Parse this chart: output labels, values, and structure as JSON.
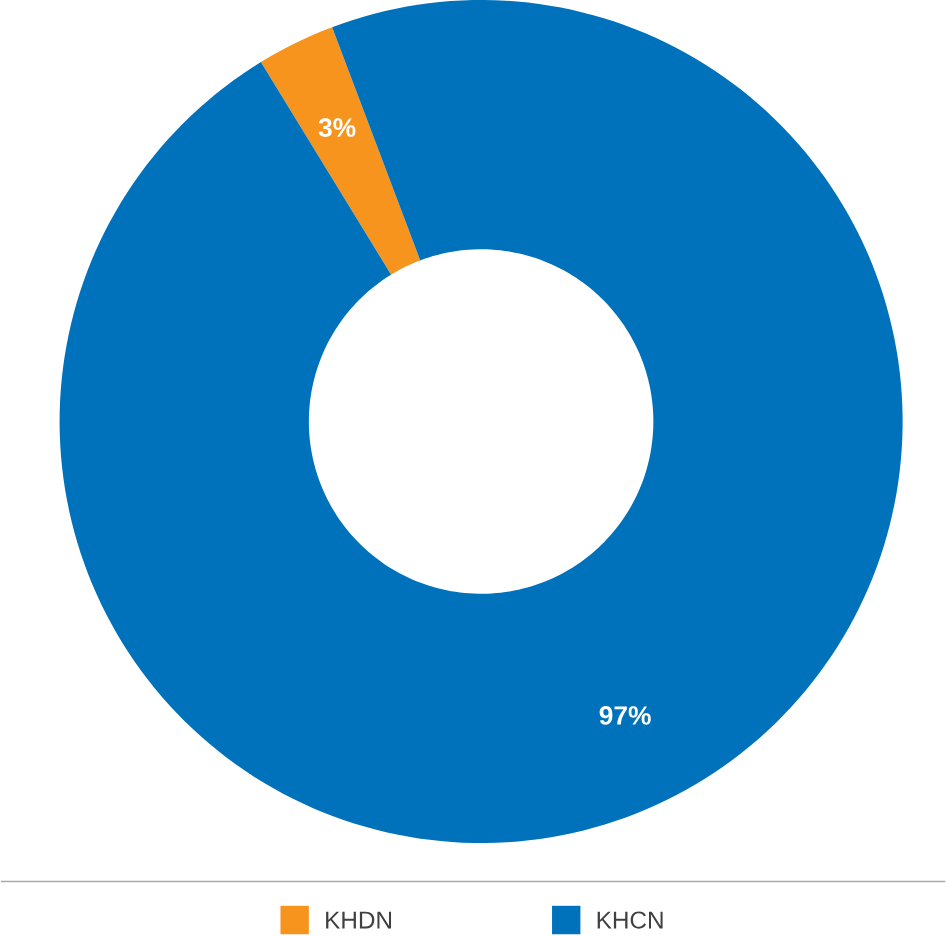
{
  "chart_data": {
    "type": "donut",
    "categories": [
      "KHDN",
      "KHCN"
    ],
    "values": [
      3,
      97
    ],
    "colors": [
      "#f7941d",
      "#0072bc"
    ],
    "value_labels": [
      "3%",
      "97%"
    ],
    "legend": "bottom"
  }
}
